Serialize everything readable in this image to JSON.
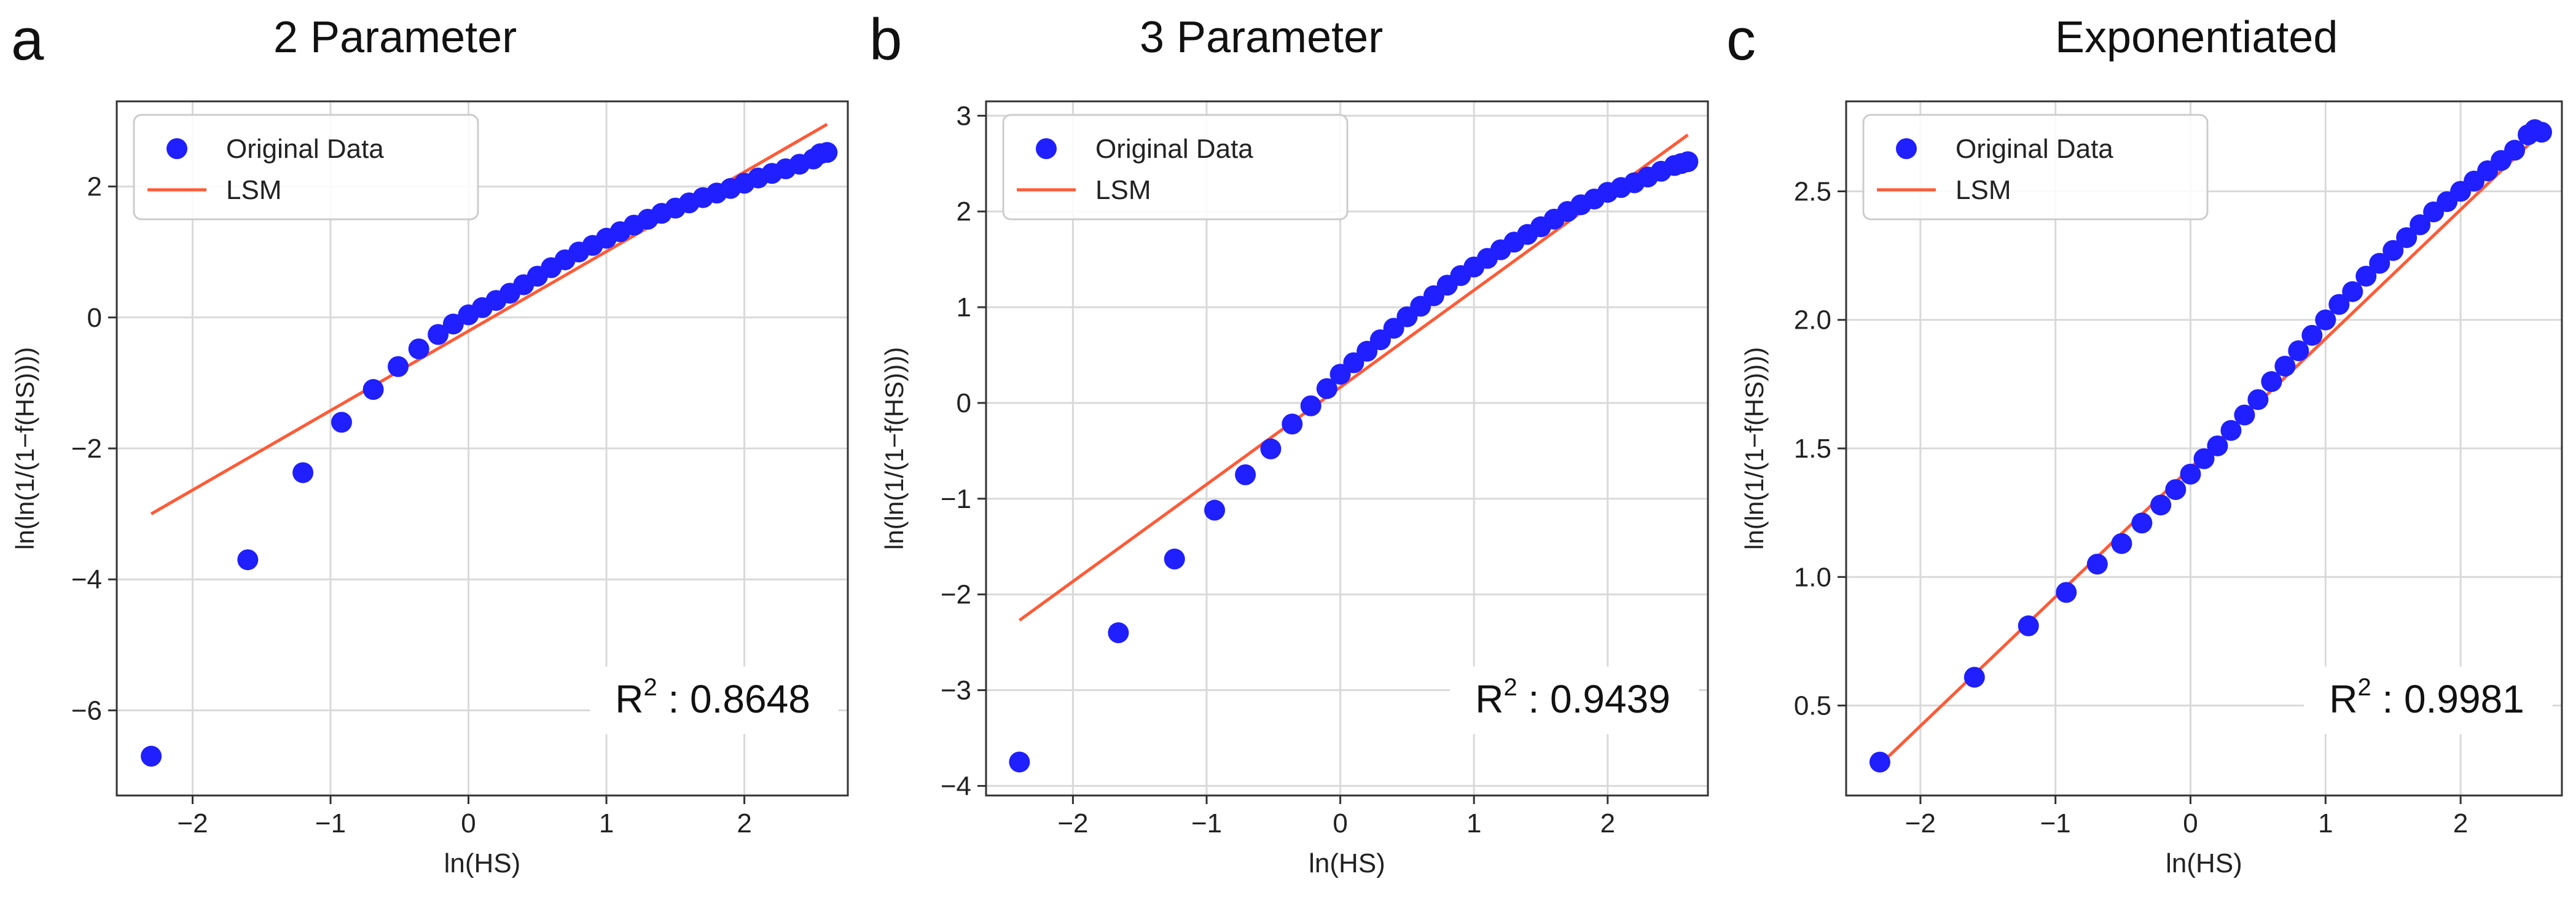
{
  "panels": [
    {
      "letter": "a",
      "title": "2 Parameter"
    },
    {
      "letter": "b",
      "title": "3 Parameter"
    },
    {
      "letter": "c",
      "title": "Exponentiated"
    }
  ],
  "chart_data": [
    {
      "type": "scatter",
      "title": "2 Parameter",
      "xlabel": "ln(HS)",
      "ylabel": "ln(ln(1/(1−f(HS))))",
      "xlim": [
        -2.55,
        2.75
      ],
      "ylim": [
        -7.3,
        3.3
      ],
      "xticks": [
        -2,
        -1,
        0,
        1,
        2
      ],
      "yticks": [
        -6,
        -4,
        -2,
        0,
        2
      ],
      "grid": true,
      "legend_position": "top-left",
      "annotation": "R² : 0.8648",
      "series": [
        {
          "name": "Original Data",
          "kind": "scatter",
          "color": "#1f1fff",
          "x": [
            -2.3,
            -1.6,
            -1.2,
            -0.92,
            -0.69,
            -0.51,
            -0.36,
            -0.22,
            -0.11,
            0.0,
            0.1,
            0.2,
            0.3,
            0.4,
            0.5,
            0.6,
            0.7,
            0.8,
            0.9,
            1.0,
            1.1,
            1.2,
            1.3,
            1.4,
            1.5,
            1.6,
            1.7,
            1.8,
            1.9,
            2.0,
            2.1,
            2.2,
            2.3,
            2.4,
            2.5,
            2.55,
            2.6
          ],
          "y": [
            -6.7,
            -3.7,
            -2.37,
            -1.6,
            -1.1,
            -0.75,
            -0.48,
            -0.26,
            -0.1,
            0.04,
            0.15,
            0.26,
            0.37,
            0.5,
            0.63,
            0.76,
            0.88,
            1.0,
            1.1,
            1.21,
            1.31,
            1.41,
            1.5,
            1.59,
            1.67,
            1.75,
            1.83,
            1.9,
            1.97,
            2.05,
            2.13,
            2.2,
            2.27,
            2.34,
            2.42,
            2.5,
            2.52
          ]
        },
        {
          "name": "LSM",
          "kind": "line",
          "color": "#ff5a36",
          "x": [
            -2.3,
            2.6
          ],
          "y": [
            -3.0,
            2.95
          ]
        }
      ]
    },
    {
      "type": "scatter",
      "title": "3 Parameter",
      "xlabel": "ln(HS)",
      "ylabel": "ln(ln(1/(1−f(HS))))",
      "xlim": [
        -2.65,
        2.75
      ],
      "ylim": [
        -4.1,
        3.15
      ],
      "xticks": [
        -2,
        -1,
        0,
        1,
        2
      ],
      "yticks": [
        -4,
        -3,
        -2,
        -1,
        0,
        1,
        2,
        3
      ],
      "grid": true,
      "legend_position": "top-left",
      "annotation": "R² : 0.9439",
      "series": [
        {
          "name": "Original Data",
          "kind": "scatter",
          "color": "#1f1fff",
          "x": [
            -2.4,
            -1.66,
            -1.24,
            -0.94,
            -0.71,
            -0.52,
            -0.36,
            -0.22,
            -0.1,
            0.0,
            0.1,
            0.2,
            0.3,
            0.4,
            0.5,
            0.6,
            0.7,
            0.8,
            0.9,
            1.0,
            1.1,
            1.2,
            1.3,
            1.4,
            1.5,
            1.6,
            1.7,
            1.8,
            1.9,
            2.0,
            2.1,
            2.2,
            2.3,
            2.4,
            2.5,
            2.55,
            2.6
          ],
          "y": [
            -3.75,
            -2.4,
            -1.63,
            -1.12,
            -0.75,
            -0.48,
            -0.22,
            -0.03,
            0.15,
            0.3,
            0.42,
            0.54,
            0.66,
            0.78,
            0.9,
            1.01,
            1.12,
            1.23,
            1.33,
            1.42,
            1.51,
            1.6,
            1.68,
            1.76,
            1.84,
            1.92,
            2.0,
            2.07,
            2.13,
            2.2,
            2.25,
            2.3,
            2.36,
            2.42,
            2.48,
            2.5,
            2.52
          ]
        },
        {
          "name": "LSM",
          "kind": "line",
          "color": "#ff5a36",
          "x": [
            -2.4,
            2.6
          ],
          "y": [
            -2.27,
            2.8
          ]
        }
      ]
    },
    {
      "type": "scatter",
      "title": "Exponentiated",
      "xlabel": "ln(HS)",
      "ylabel": "ln(ln(1/(1−f(HS))))",
      "xlim": [
        -2.55,
        2.75
      ],
      "ylim": [
        0.15,
        2.85
      ],
      "xticks": [
        -2,
        -1,
        0,
        1,
        2
      ],
      "yticks": [
        0.5,
        1.0,
        1.5,
        2.0,
        2.5
      ],
      "ytick_labels": [
        "0.5",
        "1.0",
        "1.5",
        "2.0",
        "2.5"
      ],
      "grid": true,
      "legend_position": "top-left",
      "annotation": "R² : 0.9981",
      "series": [
        {
          "name": "Original Data",
          "kind": "scatter",
          "color": "#1f1fff",
          "x": [
            -2.3,
            -1.6,
            -1.2,
            -0.92,
            -0.69,
            -0.51,
            -0.36,
            -0.22,
            -0.11,
            0.0,
            0.1,
            0.2,
            0.3,
            0.4,
            0.5,
            0.6,
            0.7,
            0.8,
            0.9,
            1.0,
            1.1,
            1.2,
            1.3,
            1.4,
            1.5,
            1.6,
            1.7,
            1.8,
            1.9,
            2.0,
            2.1,
            2.2,
            2.3,
            2.4,
            2.5,
            2.55,
            2.6
          ],
          "y": [
            0.28,
            0.61,
            0.81,
            0.94,
            1.05,
            1.13,
            1.21,
            1.28,
            1.34,
            1.4,
            1.46,
            1.51,
            1.57,
            1.63,
            1.69,
            1.76,
            1.82,
            1.88,
            1.94,
            2.0,
            2.06,
            2.11,
            2.17,
            2.22,
            2.27,
            2.32,
            2.37,
            2.42,
            2.46,
            2.5,
            2.54,
            2.58,
            2.62,
            2.66,
            2.72,
            2.74,
            2.73
          ]
        },
        {
          "name": "LSM",
          "kind": "line",
          "color": "#ff5a36",
          "x": [
            -2.3,
            2.6
          ],
          "y": [
            0.27,
            2.73
          ]
        }
      ]
    }
  ]
}
